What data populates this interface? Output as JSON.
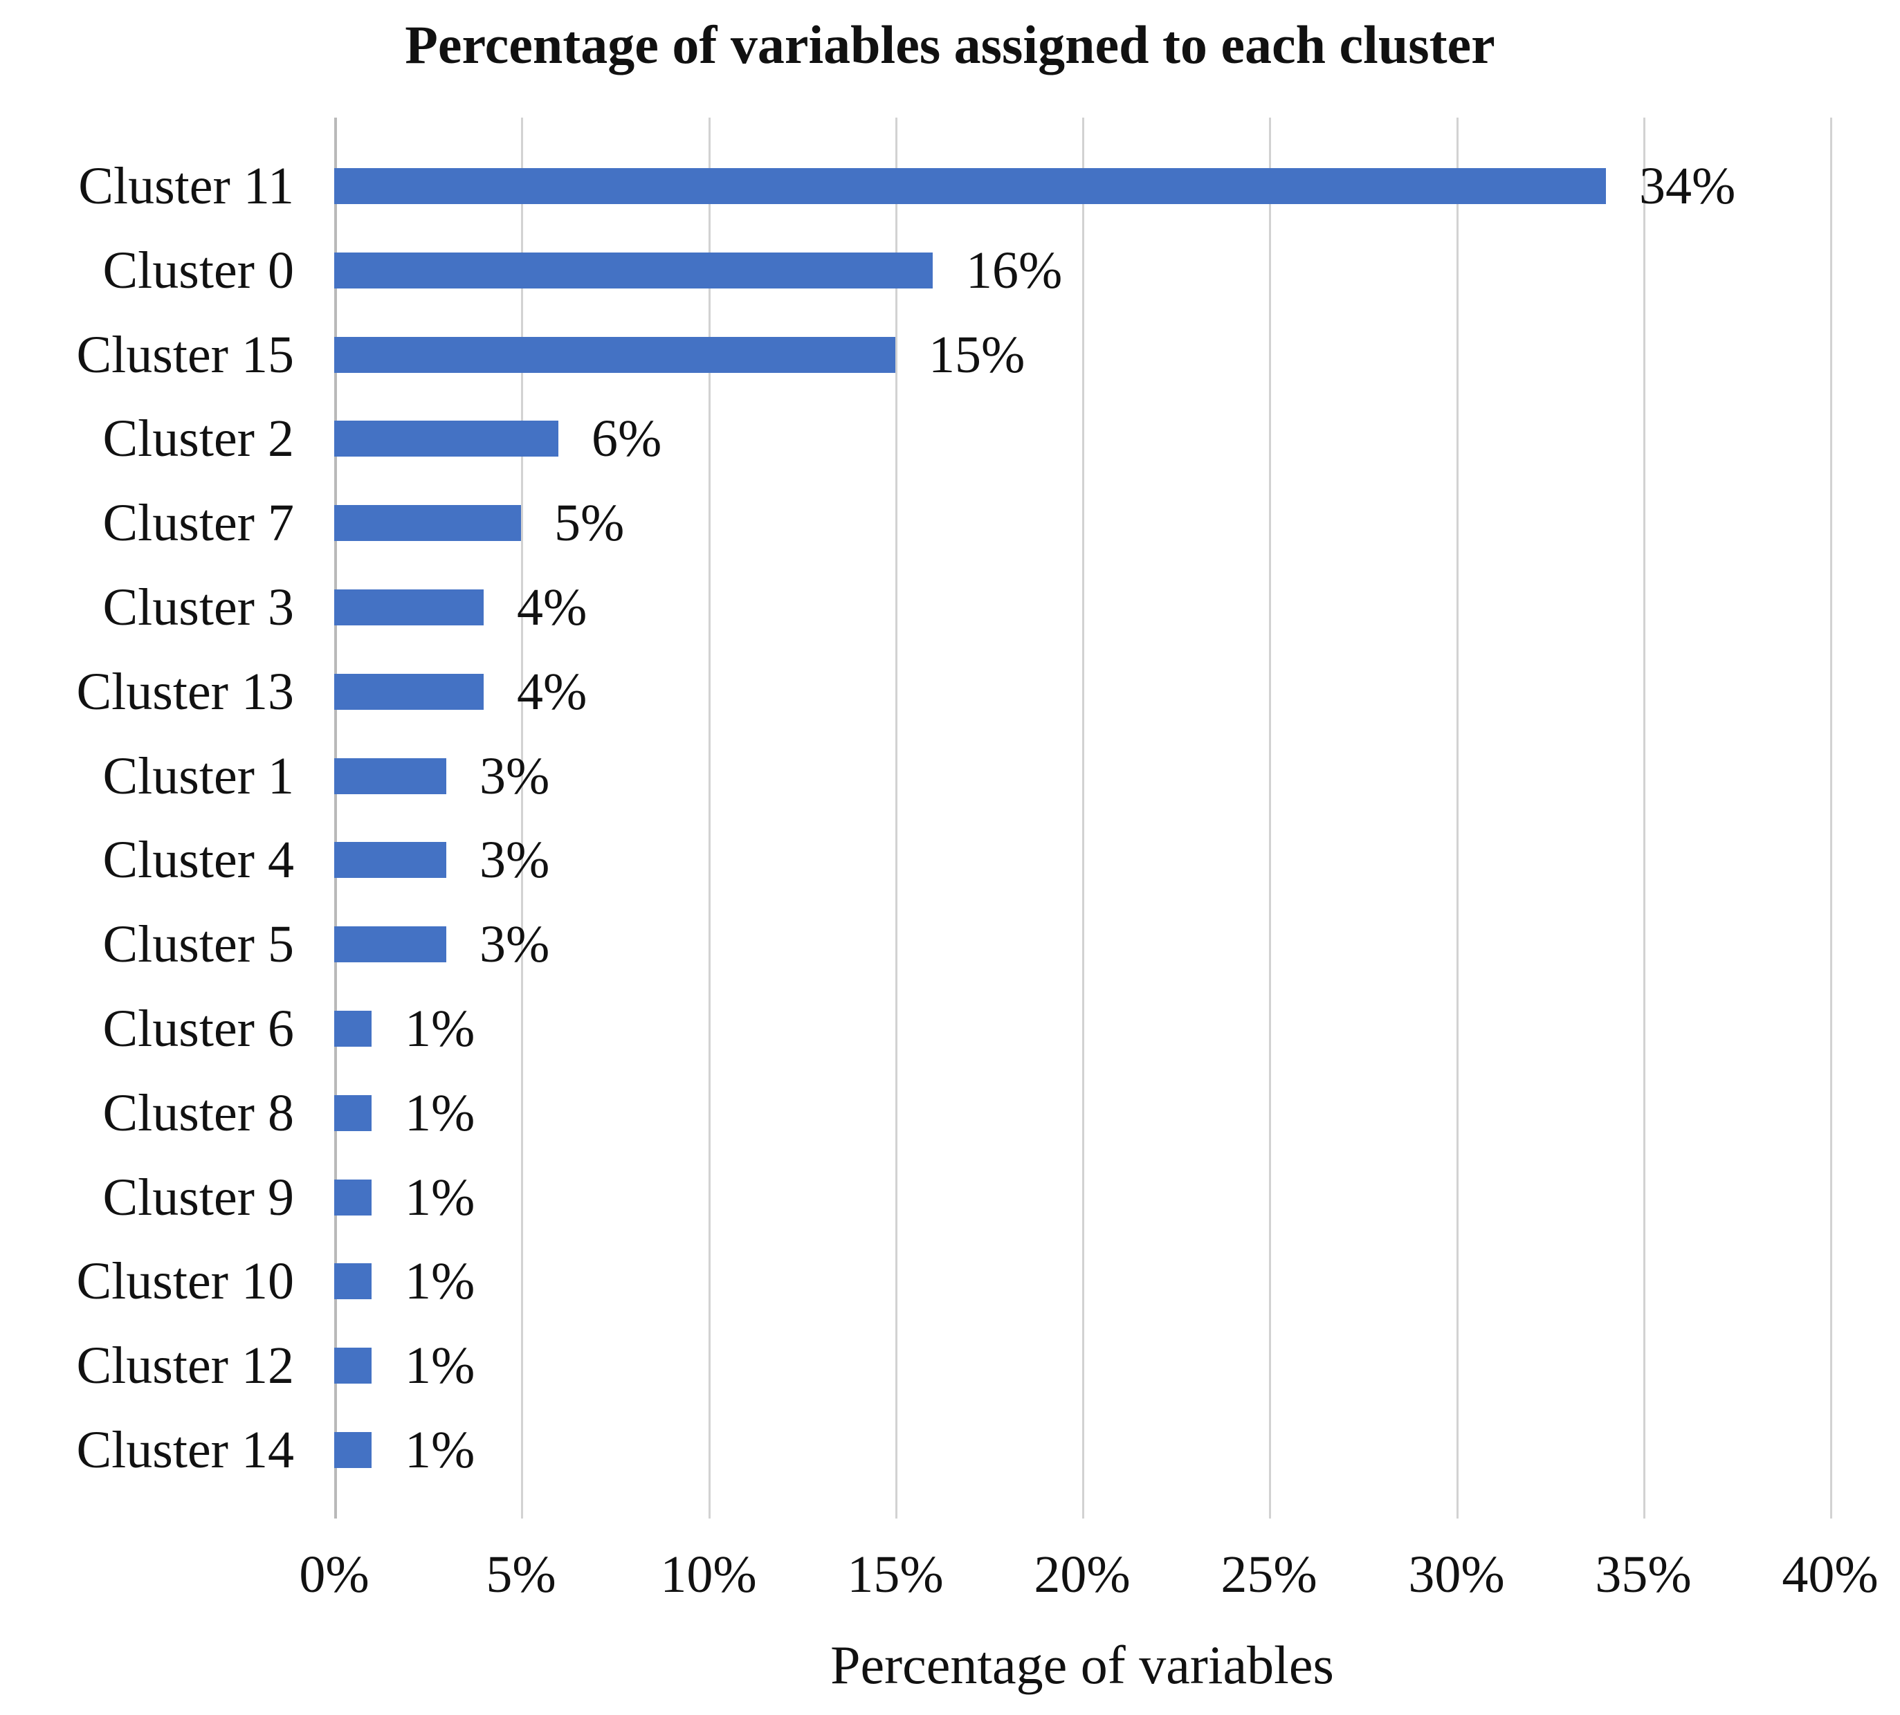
{
  "chart_data": {
    "type": "bar",
    "orientation": "horizontal",
    "title": "Percentage of variables assigned to each cluster",
    "xlabel": "Percentage of variables",
    "ylabel": "",
    "categories": [
      "Cluster 11",
      "Cluster 0",
      "Cluster 15",
      "Cluster 2",
      "Cluster 7",
      "Cluster 3",
      "Cluster 13",
      "Cluster 1",
      "Cluster 4",
      "Cluster 5",
      "Cluster 6",
      "Cluster 8",
      "Cluster 9",
      "Cluster 10",
      "Cluster 12",
      "Cluster 14"
    ],
    "values": [
      34,
      16,
      15,
      6,
      5,
      4,
      4,
      3,
      3,
      3,
      1,
      1,
      1,
      1,
      1,
      1
    ],
    "value_labels": [
      "34%",
      "16%",
      "15%",
      "6%",
      "5%",
      "4%",
      "4%",
      "3%",
      "3%",
      "3%",
      "1%",
      "1%",
      "1%",
      "1%",
      "1%",
      "1%"
    ],
    "xlim": [
      0,
      40
    ],
    "xtick_labels": [
      "0%",
      "5%",
      "10%",
      "15%",
      "20%",
      "25%",
      "30%",
      "35%",
      "40%"
    ],
    "grid": true,
    "legend_position": "none",
    "colors": {
      "bar": "#4472C4",
      "gridline": "#d2d2d2",
      "axis_line": "#b9b9b9",
      "text": "#111111",
      "background": "#ffffff"
    }
  }
}
